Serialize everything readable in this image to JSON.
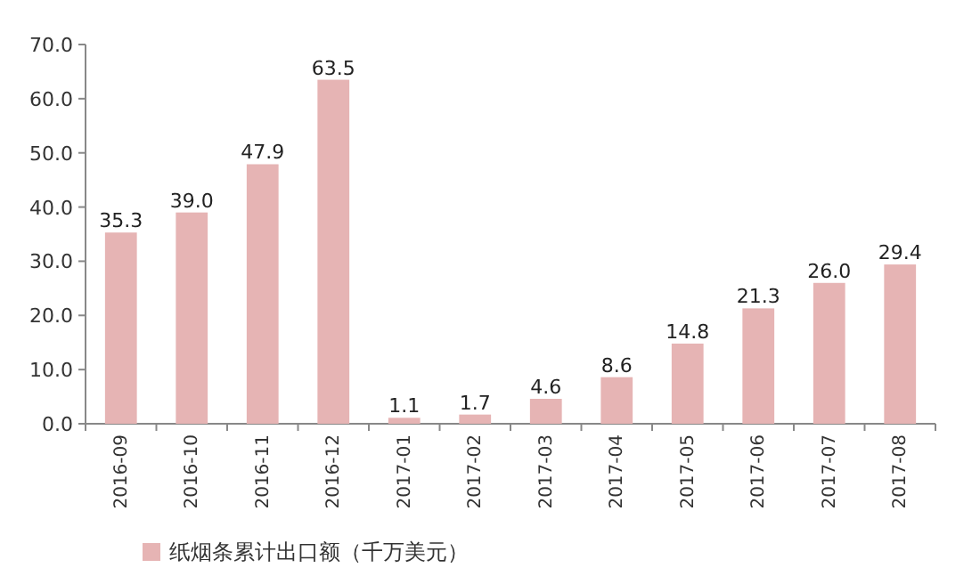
{
  "chart_data": {
    "type": "bar",
    "categories": [
      "2016-09",
      "2016-10",
      "2016-11",
      "2016-12",
      "2017-01",
      "2017-02",
      "2017-03",
      "2017-04",
      "2017-05",
      "2017-06",
      "2017-07",
      "2017-08"
    ],
    "series": [
      {
        "name": "纸烟条累计出口额（千万美元）",
        "color": "#e6b4b4",
        "values": [
          35.3,
          39.0,
          47.9,
          63.5,
          1.1,
          1.7,
          4.6,
          8.6,
          14.8,
          21.3,
          26.0,
          29.4
        ],
        "value_labels": [
          "35.3",
          "39.0",
          "47.9",
          "63.5",
          "1.1",
          "1.7",
          "4.6",
          "8.6",
          "14.8",
          "21.3",
          "26.0",
          "29.4"
        ]
      }
    ],
    "ylim": [
      0,
      70
    ],
    "yticks": [
      {
        "value": 0,
        "label": "0.0"
      },
      {
        "value": 10,
        "label": "10.0"
      },
      {
        "value": 20,
        "label": "20.0"
      },
      {
        "value": 30,
        "label": "30.0"
      },
      {
        "value": 40,
        "label": "40.0"
      },
      {
        "value": 50,
        "label": "50.0"
      },
      {
        "value": 60,
        "label": "60.0"
      },
      {
        "value": 70,
        "label": "70.0"
      }
    ],
    "legend": "bottom"
  }
}
